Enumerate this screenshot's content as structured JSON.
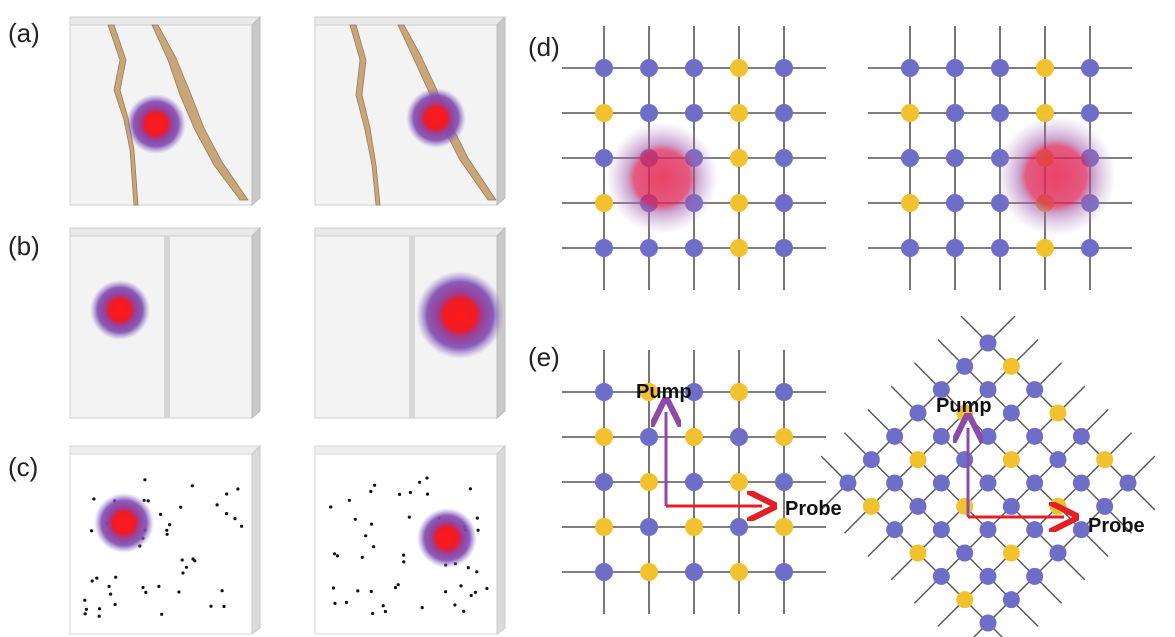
{
  "panels": {
    "a": {
      "label": "(a)"
    },
    "b": {
      "label": "(b)"
    },
    "c": {
      "label": "(c)"
    },
    "d": {
      "label": "(d)"
    },
    "e": {
      "label": "(e)",
      "pump_label": "Pump",
      "probe_label": "Probe"
    }
  },
  "colors": {
    "atom_blue": "#6e6ec8",
    "atom_yellow": "#f2c12e",
    "lattice_line": "#555555",
    "spot_core": "#ee1c25",
    "spot_halo": "#8a4fb0",
    "arrow_pump": "#8d4aa8",
    "arrow_probe": "#e31e24",
    "crack": "#c9a57a"
  }
}
